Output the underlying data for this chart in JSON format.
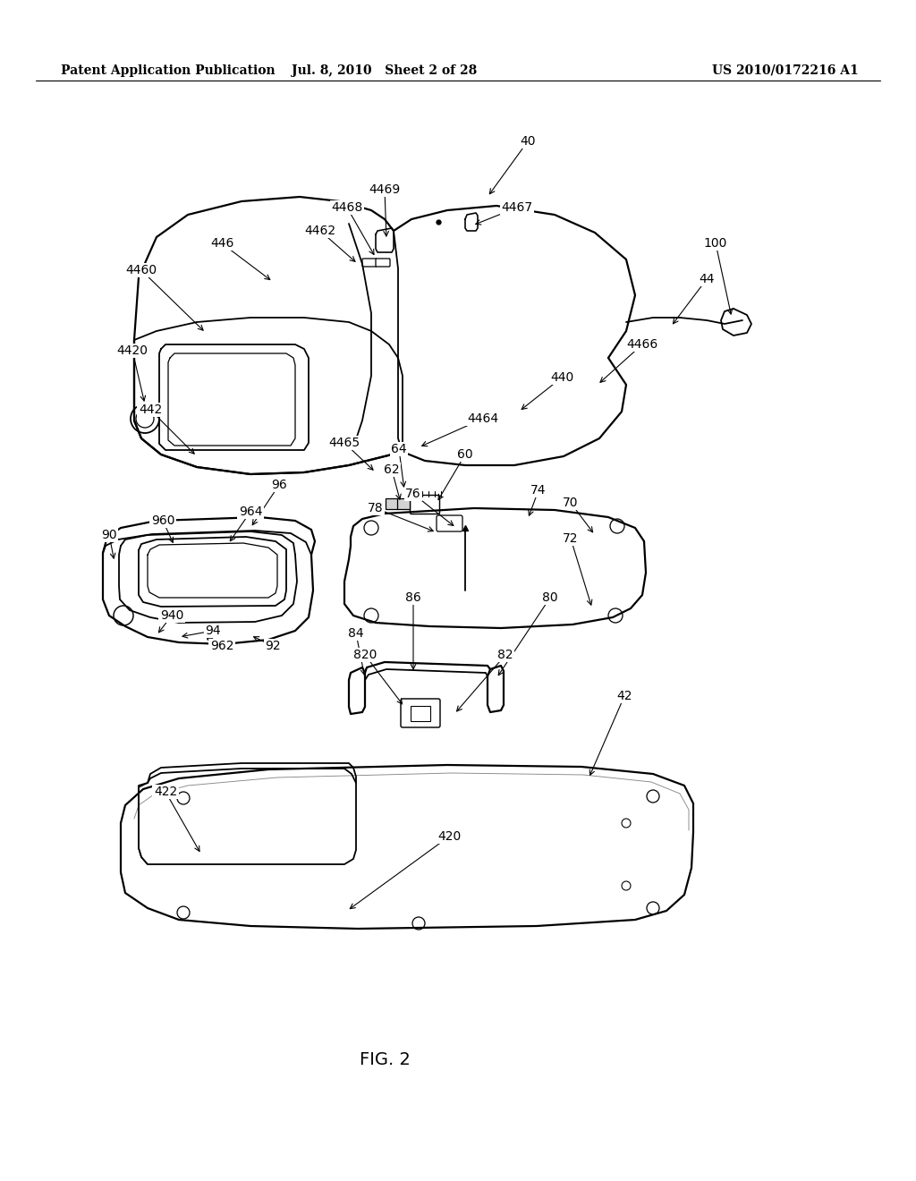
{
  "bg_color": "#ffffff",
  "header_left": "Patent Application Publication",
  "header_mid": "Jul. 8, 2010   Sheet 2 of 28",
  "header_right": "US 2010/0172216 A1",
  "figure_label": "FIG. 2",
  "lw": 1.3,
  "lw_thick": 1.6,
  "fs_label": 10,
  "fs_header": 10,
  "fs_fig": 14
}
